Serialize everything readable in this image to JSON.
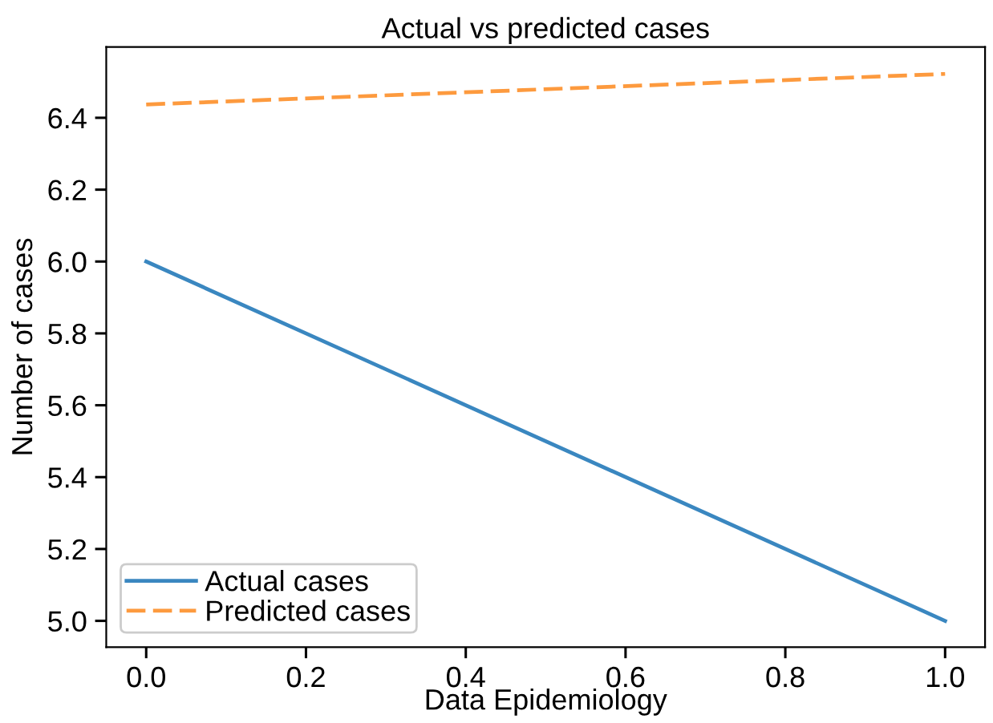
{
  "chart_data": {
    "type": "line",
    "title": "Actual vs predicted cases",
    "xlabel": "Data Epidemiology",
    "ylabel": "Number of cases",
    "x": [
      0.0,
      1.0
    ],
    "series": [
      {
        "name": "Actual cases",
        "color": "#3a87c0",
        "values": [
          6.0,
          5.0
        ],
        "line_style": "solid"
      },
      {
        "name": "Predicted cases",
        "color": "#fd9a3e",
        "values": [
          6.437,
          6.522
        ],
        "line_style": "dashed"
      }
    ],
    "xlim": [
      -0.05,
      1.05
    ],
    "ylim": [
      4.927,
      6.597
    ],
    "xticks": [
      {
        "value": 0.0,
        "label": "0.0"
      },
      {
        "value": 0.2,
        "label": "0.2"
      },
      {
        "value": 0.4,
        "label": "0.4"
      },
      {
        "value": 0.6,
        "label": "0.6"
      },
      {
        "value": 0.8,
        "label": "0.8"
      },
      {
        "value": 1.0,
        "label": "1.0"
      }
    ],
    "yticks": [
      {
        "value": 5.0,
        "label": "5.0"
      },
      {
        "value": 5.2,
        "label": "5.2"
      },
      {
        "value": 5.4,
        "label": "5.4"
      },
      {
        "value": 5.6,
        "label": "5.6"
      },
      {
        "value": 5.8,
        "label": "5.8"
      },
      {
        "value": 6.0,
        "label": "6.0"
      },
      {
        "value": 6.2,
        "label": "6.2"
      },
      {
        "value": 6.4,
        "label": "6.4"
      }
    ],
    "grid": false,
    "legend": "bottom left",
    "marker": "none"
  }
}
